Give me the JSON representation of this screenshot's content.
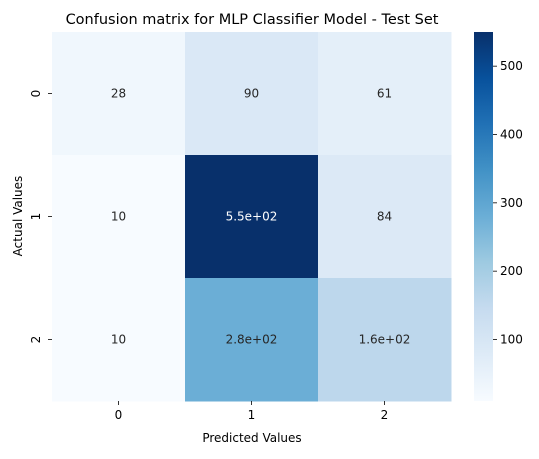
{
  "chart_data": {
    "type": "heatmap",
    "title": "Confusion matrix for MLP Classifier Model - Test Set",
    "xlabel": "Predicted Values",
    "ylabel": "Actual Values",
    "x_categories": [
      "0",
      "1",
      "2"
    ],
    "y_categories": [
      "0",
      "1",
      "2"
    ],
    "values": [
      [
        28,
        90,
        61
      ],
      [
        10,
        550,
        84
      ],
      [
        10,
        280,
        160
      ]
    ],
    "cell_labels": [
      [
        "28",
        "90",
        "61"
      ],
      [
        "10",
        "5.5e+02",
        "84"
      ],
      [
        "10",
        "2.8e+02",
        "1.6e+02"
      ]
    ],
    "colormap": "Blues",
    "color_range": [
      10,
      550
    ],
    "colorbar": {
      "ticks": [
        100,
        200,
        300,
        400,
        500
      ],
      "tick_labels": [
        "100",
        "200",
        "300",
        "400",
        "500"
      ]
    }
  }
}
